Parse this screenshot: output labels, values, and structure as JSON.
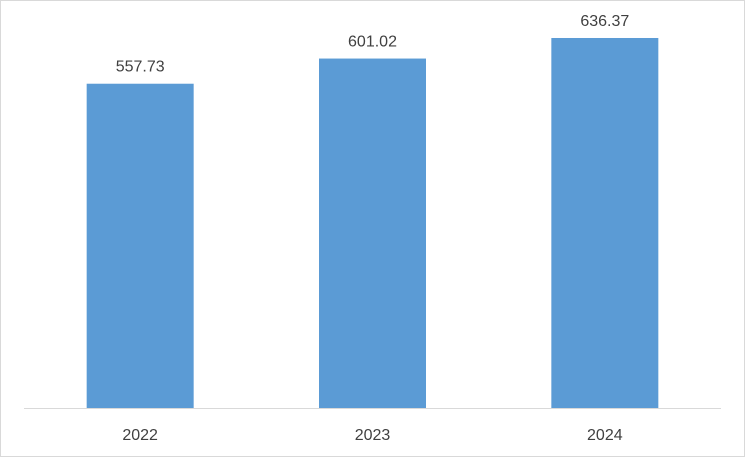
{
  "chart_data": {
    "type": "bar",
    "categories": [
      "2022",
      "2023",
      "2024"
    ],
    "values": [
      557.73,
      601.02,
      636.37
    ],
    "data_labels": [
      "557.73",
      "601.02",
      "636.37"
    ],
    "title": "",
    "xlabel": "",
    "ylabel": "",
    "ylim": [
      0,
      700
    ],
    "grid": false,
    "legend": "none",
    "colors": {
      "bar": "#5b9bd5",
      "axis": "#d9d9d9",
      "text": "#404040"
    }
  }
}
